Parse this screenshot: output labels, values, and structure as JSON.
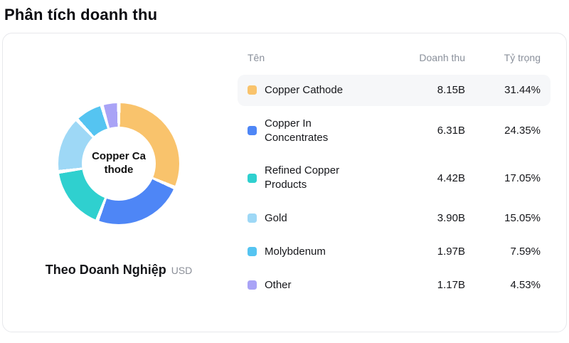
{
  "page": {
    "title": "Phân tích doanh thu"
  },
  "chart_card": {
    "center_label": [
      "Copper Ca",
      "thode"
    ],
    "caption": "Theo Doanh Nghiệp",
    "unit": "USD",
    "table": {
      "headers": {
        "name": "Tên",
        "revenue": "Doanh thu",
        "share": "Tỷ trọng"
      }
    }
  },
  "chart_data": {
    "type": "pie",
    "subtype": "donut",
    "title": "Theo Doanh Nghiệp",
    "unit": "USD",
    "center_label": "Copper Cathode",
    "legend_position": "right-table",
    "segments": [
      {
        "label": "Copper Cathode",
        "revenue": "8.15B",
        "percent": 31.44,
        "percent_label": "31.44%",
        "color": "#F9C36C",
        "highlighted": true
      },
      {
        "label": "Copper In Concentrates",
        "revenue": "6.31B",
        "percent": 24.35,
        "percent_label": "24.35%",
        "color": "#4E86F6",
        "highlighted": false
      },
      {
        "label": "Refined Copper Products",
        "revenue": "4.42B",
        "percent": 17.05,
        "percent_label": "17.05%",
        "color": "#2FD0CF",
        "highlighted": false
      },
      {
        "label": "Gold",
        "revenue": "3.90B",
        "percent": 15.05,
        "percent_label": "15.05%",
        "color": "#9ED8F6",
        "highlighted": false
      },
      {
        "label": "Molybdenum",
        "revenue": "1.97B",
        "percent": 7.59,
        "percent_label": "7.59%",
        "color": "#55C4F1",
        "highlighted": false
      },
      {
        "label": "Other",
        "revenue": "1.17B",
        "percent": 4.53,
        "percent_label": "4.53%",
        "color": "#A9A3F6",
        "highlighted": false
      }
    ]
  }
}
